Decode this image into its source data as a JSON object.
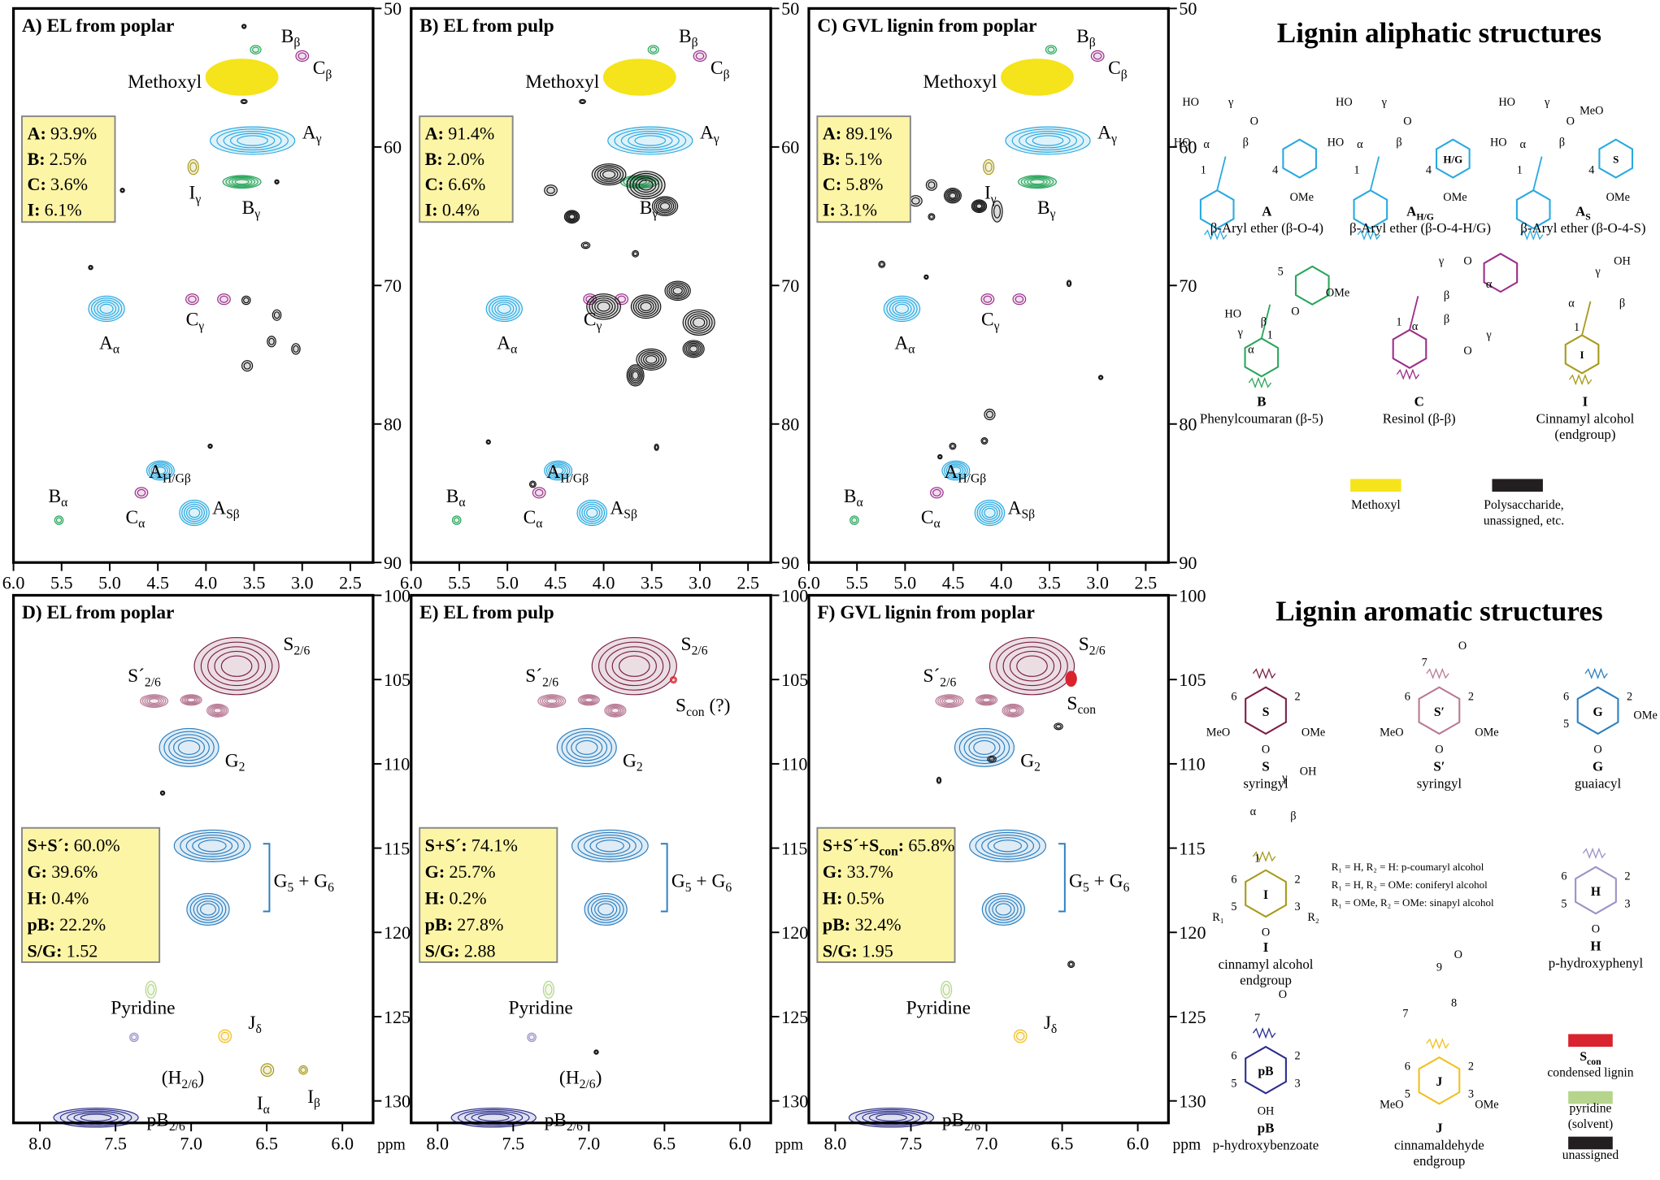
{
  "panels": [
    {
      "title": "A) EL from poplar",
      "xticks": [
        "6.0",
        "5.5",
        "5.0",
        "4.5",
        "4.0",
        "3.5",
        "3.0",
        "2.5"
      ],
      "yticks": [
        "50",
        "60",
        "70",
        "80",
        "90"
      ],
      "composition": [
        {
          "label": [
            "A:"
          ],
          "value": "93.9%",
          "color": "#29a9e0"
        },
        {
          "label": [
            "B:"
          ],
          "value": "2.5%",
          "color": "#2aa65c"
        },
        {
          "label": [
            "C:"
          ],
          "value": "3.6%",
          "color": "#9b2d8a"
        },
        {
          "label": [
            "I:"
          ],
          "value": "6.1%",
          "color": "#a79a1a"
        }
      ],
      "peaks": [
        {
          "parts": [
            "B",
            "β"
          ],
          "color": "#2aa65c"
        },
        {
          "parts": [
            "C",
            "β"
          ],
          "color": "#9b2d8a"
        },
        {
          "parts": [
            "Methoxyl"
          ],
          "color": "#f5e31c"
        },
        {
          "parts": [
            "A",
            "γ"
          ],
          "color": "#29a9e0"
        },
        {
          "parts": [
            "I",
            "γ"
          ],
          "color": "#a79a1a"
        },
        {
          "parts": [
            "B",
            "γ"
          ],
          "color": "#2aa65c"
        },
        {
          "parts": [
            "A",
            "α"
          ],
          "color": "#29a9e0"
        },
        {
          "parts": [
            "C",
            "γ"
          ],
          "color": "#9b2d8a"
        },
        {
          "parts": [
            "A",
            "H/Gβ"
          ],
          "color": "#29a9e0"
        },
        {
          "parts": [
            "C",
            "α"
          ],
          "color": "#9b2d8a"
        },
        {
          "parts": [
            "A",
            "Sβ"
          ],
          "color": "#29a9e0"
        },
        {
          "parts": [
            "B",
            "α"
          ],
          "color": "#2aa65c"
        }
      ]
    },
    {
      "title": "B) EL from pulp",
      "xticks": [
        "6.0",
        "5.5",
        "5.0",
        "4.5",
        "4.0",
        "3.5",
        "3.0",
        "2.5"
      ],
      "yticks": [
        "50",
        "60",
        "70",
        "80",
        "90"
      ],
      "composition": [
        {
          "label": [
            "A:"
          ],
          "value": "91.4%",
          "color": "#29a9e0"
        },
        {
          "label": [
            "B:"
          ],
          "value": "2.0%",
          "color": "#2aa65c"
        },
        {
          "label": [
            "C:"
          ],
          "value": "6.6%",
          "color": "#9b2d8a"
        },
        {
          "label": [
            "I:"
          ],
          "value": "0.4%",
          "color": "#a79a1a"
        }
      ],
      "peaks": [
        {
          "parts": [
            "B",
            "β"
          ],
          "color": "#2aa65c"
        },
        {
          "parts": [
            "C",
            "β"
          ],
          "color": "#9b2d8a"
        },
        {
          "parts": [
            "Methoxyl"
          ],
          "color": "#f5e31c"
        },
        {
          "parts": [
            "A",
            "γ"
          ],
          "color": "#29a9e0"
        },
        {
          "parts": [
            "B",
            "γ"
          ],
          "color": "#2aa65c"
        },
        {
          "parts": [
            "A",
            "α"
          ],
          "color": "#29a9e0"
        },
        {
          "parts": [
            "C",
            "γ"
          ],
          "color": "#9b2d8a"
        },
        {
          "parts": [
            "A",
            "H/Gβ"
          ],
          "color": "#29a9e0"
        },
        {
          "parts": [
            "C",
            "α"
          ],
          "color": "#9b2d8a"
        },
        {
          "parts": [
            "A",
            "Sβ"
          ],
          "color": "#29a9e0"
        },
        {
          "parts": [
            "B",
            "α"
          ],
          "color": "#2aa65c"
        }
      ]
    },
    {
      "title": "C) GVL lignin from poplar",
      "xticks": [
        "6.0",
        "5.5",
        "5.0",
        "4.5",
        "4.0",
        "3.5",
        "3.0",
        "2.5"
      ],
      "yticks": [
        "50",
        "60",
        "70",
        "80",
        "90"
      ],
      "composition": [
        {
          "label": [
            "A:"
          ],
          "value": "89.1%",
          "color": "#29a9e0"
        },
        {
          "label": [
            "B:"
          ],
          "value": "5.1%",
          "color": "#2aa65c"
        },
        {
          "label": [
            "C:"
          ],
          "value": "5.8%",
          "color": "#9b2d8a"
        },
        {
          "label": [
            "I:"
          ],
          "value": "3.1%",
          "color": "#a79a1a"
        }
      ],
      "peaks": [
        {
          "parts": [
            "B",
            "β"
          ],
          "color": "#2aa65c"
        },
        {
          "parts": [
            "C",
            "β"
          ],
          "color": "#9b2d8a"
        },
        {
          "parts": [
            "Methoxyl"
          ],
          "color": "#f5e31c"
        },
        {
          "parts": [
            "A",
            "γ"
          ],
          "color": "#29a9e0"
        },
        {
          "parts": [
            "I",
            "γ"
          ],
          "color": "#a79a1a"
        },
        {
          "parts": [
            "B",
            "γ"
          ],
          "color": "#2aa65c"
        },
        {
          "parts": [
            "A",
            "α"
          ],
          "color": "#29a9e0"
        },
        {
          "parts": [
            "C",
            "γ"
          ],
          "color": "#9b2d8a"
        },
        {
          "parts": [
            "A",
            "H/Gβ"
          ],
          "color": "#29a9e0"
        },
        {
          "parts": [
            "C",
            "α"
          ],
          "color": "#9b2d8a"
        },
        {
          "parts": [
            "A",
            "Sβ"
          ],
          "color": "#29a9e0"
        },
        {
          "parts": [
            "B",
            "α"
          ],
          "color": "#2aa65c"
        }
      ]
    },
    {
      "title": "D) EL from poplar",
      "xticks": [
        "8.0",
        "7.5",
        "7.0",
        "6.5",
        "6.0"
      ],
      "yticks": [
        "100",
        "105",
        "110",
        "115",
        "120",
        "125",
        "130"
      ],
      "xunit": "ppm",
      "composition": [
        {
          "label": [
            "S+S´:"
          ],
          "value": "60.0%",
          "color": "#7b1f45"
        },
        {
          "label": [
            "G:"
          ],
          "value": "39.6%",
          "color": "#2b7fc0"
        },
        {
          "label": [
            "H:"
          ],
          "value": "0.4%",
          "color": "#9b92c6"
        },
        {
          "label": [
            "pB:"
          ],
          "value": "22.2%",
          "color": "#2a2d8c"
        },
        {
          "label": [
            "S/G:"
          ],
          "value": "1.52",
          "color": "#000000"
        }
      ],
      "peaks": [
        {
          "parts": [
            "S",
            "2/6"
          ],
          "color": "#7b1f45"
        },
        {
          "parts": [
            "S´",
            "2/6"
          ],
          "color": "#b87a95"
        },
        {
          "parts": [
            "G",
            "2"
          ],
          "color": "#2b7fc0"
        },
        {
          "parts": [
            "G",
            "5",
            " + G",
            "6"
          ],
          "color": "#2b7fc0"
        },
        {
          "parts": [
            "Pyridine"
          ],
          "color": "#b6d58c"
        },
        {
          "parts": [
            "J",
            "δ"
          ],
          "color": "#f0c020"
        },
        {
          "parts": [
            "(H",
            "2/6",
            ")"
          ],
          "color": "#9b92c6"
        },
        {
          "parts": [
            "I",
            "α"
          ],
          "color": "#a79a1a"
        },
        {
          "parts": [
            "I",
            "β"
          ],
          "color": "#a79a1a"
        },
        {
          "parts": [
            "pB",
            "2/6"
          ],
          "color": "#2a2d8c"
        }
      ]
    },
    {
      "title": "E) EL from pulp",
      "xticks": [
        "8.0",
        "7.5",
        "7.0",
        "6.5",
        "6.0"
      ],
      "yticks": [
        "100",
        "105",
        "110",
        "115",
        "120",
        "125",
        "130"
      ],
      "xunit": "ppm",
      "composition": [
        {
          "label": [
            "S+S´:"
          ],
          "value": "74.1%",
          "color": "#7b1f45"
        },
        {
          "label": [
            "G:"
          ],
          "value": "25.7%",
          "color": "#2b7fc0"
        },
        {
          "label": [
            "H:"
          ],
          "value": "0.2%",
          "color": "#9b92c6"
        },
        {
          "label": [
            "pB:"
          ],
          "value": "27.8%",
          "color": "#2a2d8c"
        },
        {
          "label": [
            "S/G:"
          ],
          "value": "2.88",
          "color": "#000000"
        }
      ],
      "peaks": [
        {
          "parts": [
            "S",
            "2/6"
          ],
          "color": "#7b1f45"
        },
        {
          "parts": [
            "S´",
            "2/6"
          ],
          "color": "#b87a95"
        },
        {
          "parts": [
            "S",
            "con",
            " (?)"
          ],
          "color": "#d9232e"
        },
        {
          "parts": [
            "G",
            "2"
          ],
          "color": "#2b7fc0"
        },
        {
          "parts": [
            "G",
            "5",
            " + G",
            "6"
          ],
          "color": "#2b7fc0"
        },
        {
          "parts": [
            "Pyridine"
          ],
          "color": "#b6d58c"
        },
        {
          "parts": [
            "(H",
            "2/6",
            ")"
          ],
          "color": "#9b92c6"
        },
        {
          "parts": [
            "pB",
            "2/6"
          ],
          "color": "#2a2d8c"
        }
      ]
    },
    {
      "title": "F) GVL lignin from poplar",
      "xticks": [
        "8.0",
        "7.5",
        "7.0",
        "6.5",
        "6.0"
      ],
      "yticks": [
        "100",
        "105",
        "110",
        "115",
        "120",
        "125",
        "130"
      ],
      "xunit": "ppm",
      "composition": [
        {
          "label": [
            "S+S´+S",
            "con",
            ":"
          ],
          "value": "65.8%",
          "color": "#7b1f45"
        },
        {
          "label": [
            "G:"
          ],
          "value": "33.7%",
          "color": "#2b7fc0"
        },
        {
          "label": [
            "H:"
          ],
          "value": "0.5%",
          "color": "#9b92c6"
        },
        {
          "label": [
            "pB:"
          ],
          "value": "32.4%",
          "color": "#2a2d8c"
        },
        {
          "label": [
            "S/G:"
          ],
          "value": "1.95",
          "color": "#000000"
        }
      ],
      "peaks": [
        {
          "parts": [
            "S",
            "2/6"
          ],
          "color": "#7b1f45"
        },
        {
          "parts": [
            "S´",
            "2/6"
          ],
          "color": "#b87a95"
        },
        {
          "parts": [
            "S",
            "con"
          ],
          "color": "#d9232e"
        },
        {
          "parts": [
            "G",
            "2"
          ],
          "color": "#2b7fc0"
        },
        {
          "parts": [
            "G",
            "5",
            " + G",
            "6"
          ],
          "color": "#2b7fc0"
        },
        {
          "parts": [
            "Pyridine"
          ],
          "color": "#b6d58c"
        },
        {
          "parts": [
            "J",
            "δ"
          ],
          "color": "#f0c020"
        },
        {
          "parts": [
            "pB",
            "2/6"
          ],
          "color": "#2a2d8c"
        }
      ]
    }
  ],
  "aliphatic": {
    "title": "Lignin aliphatic structures",
    "structures": [
      {
        "label": [
          "A"
        ],
        "name": [
          "β-Aryl ether (β-O-4)"
        ],
        "color": "#29a9e0",
        "ring": "",
        "atoms": [
          "HO",
          "γ",
          "HO",
          "α",
          "β",
          "O",
          "1",
          "4",
          "OMe"
        ]
      },
      {
        "label": [
          "A",
          "H/G"
        ],
        "name": [
          "β-Aryl ether (β-O-4-H/G)"
        ],
        "color": "#29a9e0",
        "ring": "H/G",
        "atoms": [
          "HO",
          "γ",
          "HO",
          "α",
          "β",
          "O",
          "1",
          "4",
          "OMe"
        ]
      },
      {
        "label": [
          "A",
          "S"
        ],
        "name": [
          "β-Aryl ether (β-O-4-S)"
        ],
        "color": "#29a9e0",
        "ring": "S",
        "atoms": [
          "HO",
          "γ",
          "HO",
          "α",
          "β",
          "O",
          "1",
          "4",
          "OMe",
          "MeO"
        ]
      },
      {
        "label": [
          "B"
        ],
        "name": [
          "Phenylcoumaran (β-5)"
        ],
        "color": "#2aa65c",
        "ring": "",
        "atoms": [
          "HO",
          "γ",
          "α",
          "β",
          "5",
          "O",
          "1",
          "OMe"
        ]
      },
      {
        "label": [
          "C"
        ],
        "name": [
          "Resinol (β-β)"
        ],
        "color": "#9b2d8a",
        "ring": "",
        "atoms": [
          "γ",
          "O",
          "α",
          "β",
          "β",
          "α",
          "O",
          "γ",
          "1"
        ]
      },
      {
        "label": [
          "I"
        ],
        "name": [
          "Cinnamyl alcohol",
          "(endgroup)"
        ],
        "color": "#a79a1a",
        "ring": "I",
        "atoms": [
          "OH",
          "γ",
          "β",
          "α",
          "1"
        ]
      }
    ],
    "legend": [
      {
        "color": "#f5e31c",
        "lines": [
          "Methoxyl"
        ]
      },
      {
        "color": "#231f20",
        "lines": [
          "Polysaccharide,",
          "unassigned, etc."
        ]
      }
    ]
  },
  "aromatic": {
    "title": "Lignin aromatic structures",
    "structures": [
      {
        "label": [
          "S"
        ],
        "name": [
          "syringyl"
        ],
        "color": "#7b1f45",
        "ring": "S",
        "atoms": [
          "6",
          "2",
          "MeO",
          "OMe",
          "O"
        ]
      },
      {
        "label": [
          "S′"
        ],
        "name": [
          "syringyl"
        ],
        "color": "#b87a95",
        "ring": "S′",
        "atoms": [
          "7",
          "O",
          "6",
          "2",
          "MeO",
          "OMe",
          "O"
        ]
      },
      {
        "label": [
          "G"
        ],
        "name": [
          "guaiacyl"
        ],
        "color": "#2b7fc0",
        "ring": "G",
        "atoms": [
          "6",
          "2",
          "5",
          "OMe",
          "O"
        ]
      },
      {
        "label": [
          "I"
        ],
        "name": [
          "cinnamyl alcohol",
          "endgroup"
        ],
        "color": "#a79a1a",
        "ring": "I",
        "atoms": [
          "OH",
          "γ",
          "β",
          "α",
          "1",
          "6",
          "2",
          "5",
          "3",
          "R₁",
          "R₂",
          "O"
        ]
      },
      {
        "label": [
          "H"
        ],
        "name": [
          "p-hydroxyphenyl"
        ],
        "color": "#9b92c6",
        "ring": "H",
        "atoms": [
          "6",
          "2",
          "5",
          "3",
          "O"
        ]
      },
      {
        "label": [
          "pB"
        ],
        "name": [
          "p-hydroxybenzoate"
        ],
        "color": "#2a2d8c",
        "ring": "pB",
        "atoms": [
          "O",
          "7",
          "6",
          "2",
          "5",
          "3",
          "OH"
        ]
      },
      {
        "label": [
          "J"
        ],
        "name": [
          "cinnamaldehyde",
          "endgroup"
        ],
        "color": "#f0c020",
        "ring": "J",
        "atoms": [
          "O",
          "9",
          "8",
          "7",
          "6",
          "2",
          "5",
          "3",
          "MeO",
          "OMe"
        ]
      }
    ],
    "notes": [
      "R₁ = H, R₂ = H: p-coumaryl alcohol",
      "R₁ = H, R₂ = OMe: coniferyl alcohol",
      "R₁ = OMe, R₂ = OMe: sinapyl alcohol"
    ],
    "legend": [
      {
        "color": "#d9232e",
        "head": [
          "S",
          "con"
        ],
        "lines": [
          "condensed lignin"
        ]
      },
      {
        "color": "#b6d58c",
        "lines": [
          "pyridine",
          "(solvent)"
        ]
      },
      {
        "color": "#231f20",
        "lines": [
          "unassigned"
        ]
      }
    ]
  }
}
